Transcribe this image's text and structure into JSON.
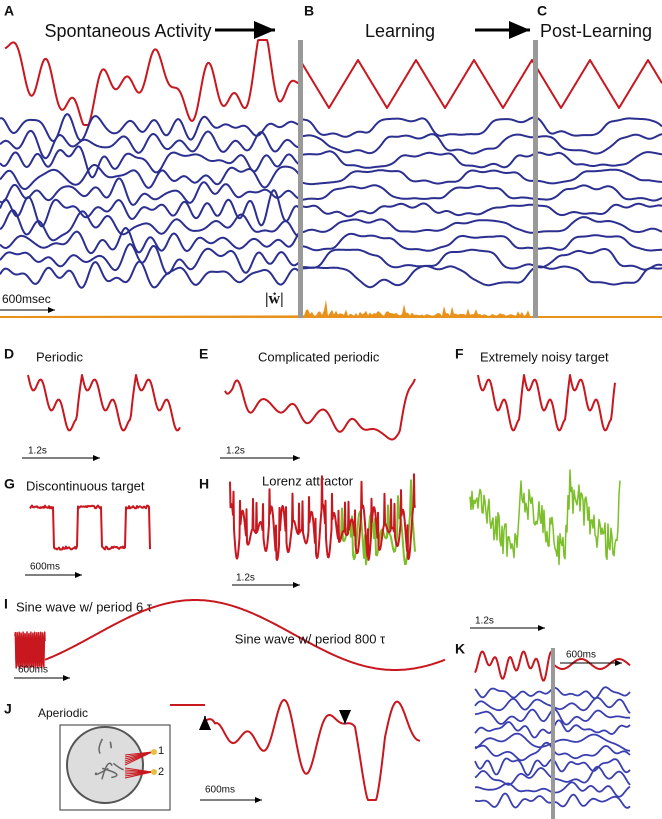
{
  "panels": {
    "A": {
      "label": "A",
      "title": "Spontaneous Activity",
      "scale": "600msec",
      "weight_label": "|ẇ|"
    },
    "B": {
      "label": "B",
      "title": "Learning"
    },
    "C": {
      "label": "C",
      "title": "Post-Learning"
    },
    "D": {
      "label": "D",
      "title": "Periodic",
      "scale": "1.2s"
    },
    "E": {
      "label": "E",
      "title": "Complicated periodic",
      "scale": "1.2s"
    },
    "F": {
      "label": "F",
      "title": "Extremely noisy target",
      "scale": "1.2s"
    },
    "G": {
      "label": "G",
      "title": "Discontinuous target",
      "scale": "600ms"
    },
    "H": {
      "label": "H",
      "title": "Lorenz attractor",
      "scale": "1.2s"
    },
    "I": {
      "label": "I",
      "title": "Sine wave w/ period 6 τ",
      "subtitle": "Sine wave w/ period 800 τ",
      "scale": "600ms"
    },
    "J": {
      "label": "J",
      "title": "Aperiodic",
      "input_1": "1",
      "input_2": "2",
      "scale": "600ms"
    },
    "K": {
      "label": "K",
      "scale": "600ms"
    }
  }
}
